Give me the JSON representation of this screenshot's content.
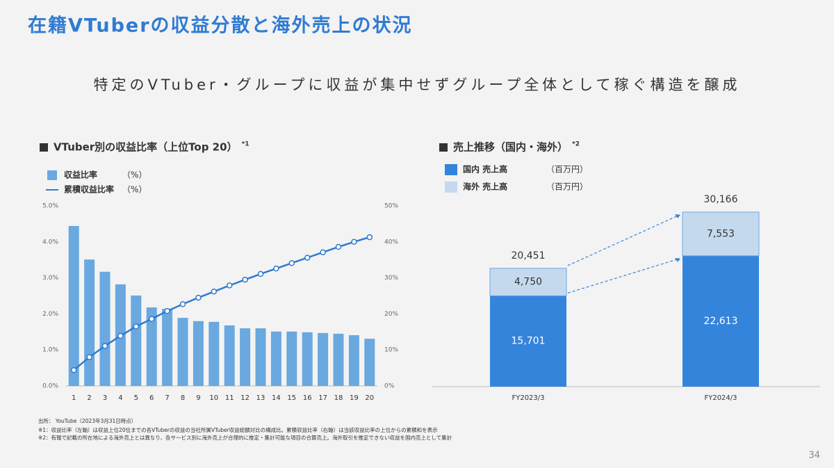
{
  "slide": {
    "title": "在籍VTuberの収益分散と海外売上の状況",
    "subtitle": "特定のVTuber・グループに収益が集中せずグループ全体として稼ぐ構造を醸成",
    "source": "出所： YouTube（2023年3月31日時点）",
    "notes": [
      "※1：収益比率（左軸）は収益上位20位までの各VTuberの収益の当社所属VTuber収益総額対比の構成比。累積収益比率（右軸）は当該収益比率の上位からの累積和を表示",
      "※2：有報で記載の所在地による海外売上とは異なり、各サービス別に海外売上が合理的に推定・集計可能な項目の合算売上。海外取引を推定できない収益を国内売上として集計"
    ],
    "page": "34"
  },
  "chart_data": [
    {
      "type": "combo",
      "title": "VTuber別の収益比率（上位Top 20）",
      "title_note": "*1",
      "categories": [
        "1",
        "2",
        "3",
        "4",
        "5",
        "6",
        "7",
        "8",
        "9",
        "10",
        "11",
        "12",
        "13",
        "14",
        "15",
        "16",
        "17",
        "18",
        "19",
        "20"
      ],
      "series": [
        {
          "name": "収益比率",
          "unit": "（%）",
          "type": "bar",
          "color": "#6aa8e0",
          "values": [
            4.44,
            3.51,
            3.17,
            2.82,
            2.51,
            2.18,
            2.14,
            1.89,
            1.8,
            1.78,
            1.68,
            1.6,
            1.6,
            1.51,
            1.51,
            1.49,
            1.47,
            1.45,
            1.41,
            1.31
          ]
        },
        {
          "name": "累積収益比率",
          "unit": "（%）",
          "type": "line",
          "axis": "y2",
          "color": "#2e7bcf",
          "values": [
            4.4,
            8.0,
            11.1,
            13.9,
            16.5,
            18.6,
            20.8,
            22.7,
            24.5,
            26.2,
            27.9,
            29.5,
            31.1,
            32.6,
            34.1,
            35.6,
            37.1,
            38.6,
            40.0,
            41.3
          ]
        }
      ],
      "ylim": [
        0,
        5
      ],
      "yticks": [
        {
          "value": 0,
          "label": "0.0%"
        },
        {
          "value": 1,
          "label": "1.0%"
        },
        {
          "value": 2,
          "label": "2.0%"
        },
        {
          "value": 3,
          "label": "3.0%"
        },
        {
          "value": 4,
          "label": "4.0%"
        },
        {
          "value": 5,
          "label": "5.0%"
        }
      ],
      "y2lim": [
        0,
        50
      ],
      "y2ticks": [
        {
          "value": 0,
          "label": "0%"
        },
        {
          "value": 10,
          "label": "10%"
        },
        {
          "value": 20,
          "label": "20%"
        },
        {
          "value": 30,
          "label": "30%"
        },
        {
          "value": 40,
          "label": "40%"
        },
        {
          "value": 50,
          "label": "50%"
        }
      ]
    },
    {
      "type": "stacked-bar",
      "title": "売上推移（国内・海外）",
      "title_note": "*2",
      "categories": [
        "FY2023/3",
        "FY2024/3"
      ],
      "series": [
        {
          "name": "国内 売上高",
          "unit": "（百万円）",
          "color": "#3584dc",
          "values": [
            15701,
            22613
          ],
          "value_labels": [
            "15,701",
            "22,613"
          ]
        },
        {
          "name": "海外 売上高",
          "unit": "（百万円）",
          "color": "#c5d9ee",
          "values": [
            4750,
            7553
          ],
          "value_labels": [
            "4,750",
            "7,553"
          ]
        }
      ],
      "totals": {
        "values": [
          20451,
          30166
        ],
        "value_labels": [
          "20,451",
          "30,166"
        ]
      }
    }
  ]
}
